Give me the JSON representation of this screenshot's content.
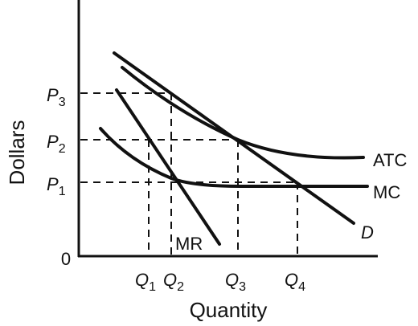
{
  "axes": {
    "y_title": "Dollars",
    "x_title": "Quantity",
    "origin_label": "0"
  },
  "price_labels": [
    {
      "letter": "P",
      "sub": "3"
    },
    {
      "letter": "P",
      "sub": "2"
    },
    {
      "letter": "P",
      "sub": "1"
    }
  ],
  "quantity_labels": [
    {
      "letter": "Q",
      "sub": "1"
    },
    {
      "letter": "Q",
      "sub": "2"
    },
    {
      "letter": "Q",
      "sub": "3"
    },
    {
      "letter": "Q",
      "sub": "4"
    }
  ],
  "curves": {
    "atc": "ATC",
    "mc": "MC",
    "demand": "D",
    "mr": "MR"
  },
  "colors": {
    "ink": "#111111",
    "background": "#ffffff"
  }
}
